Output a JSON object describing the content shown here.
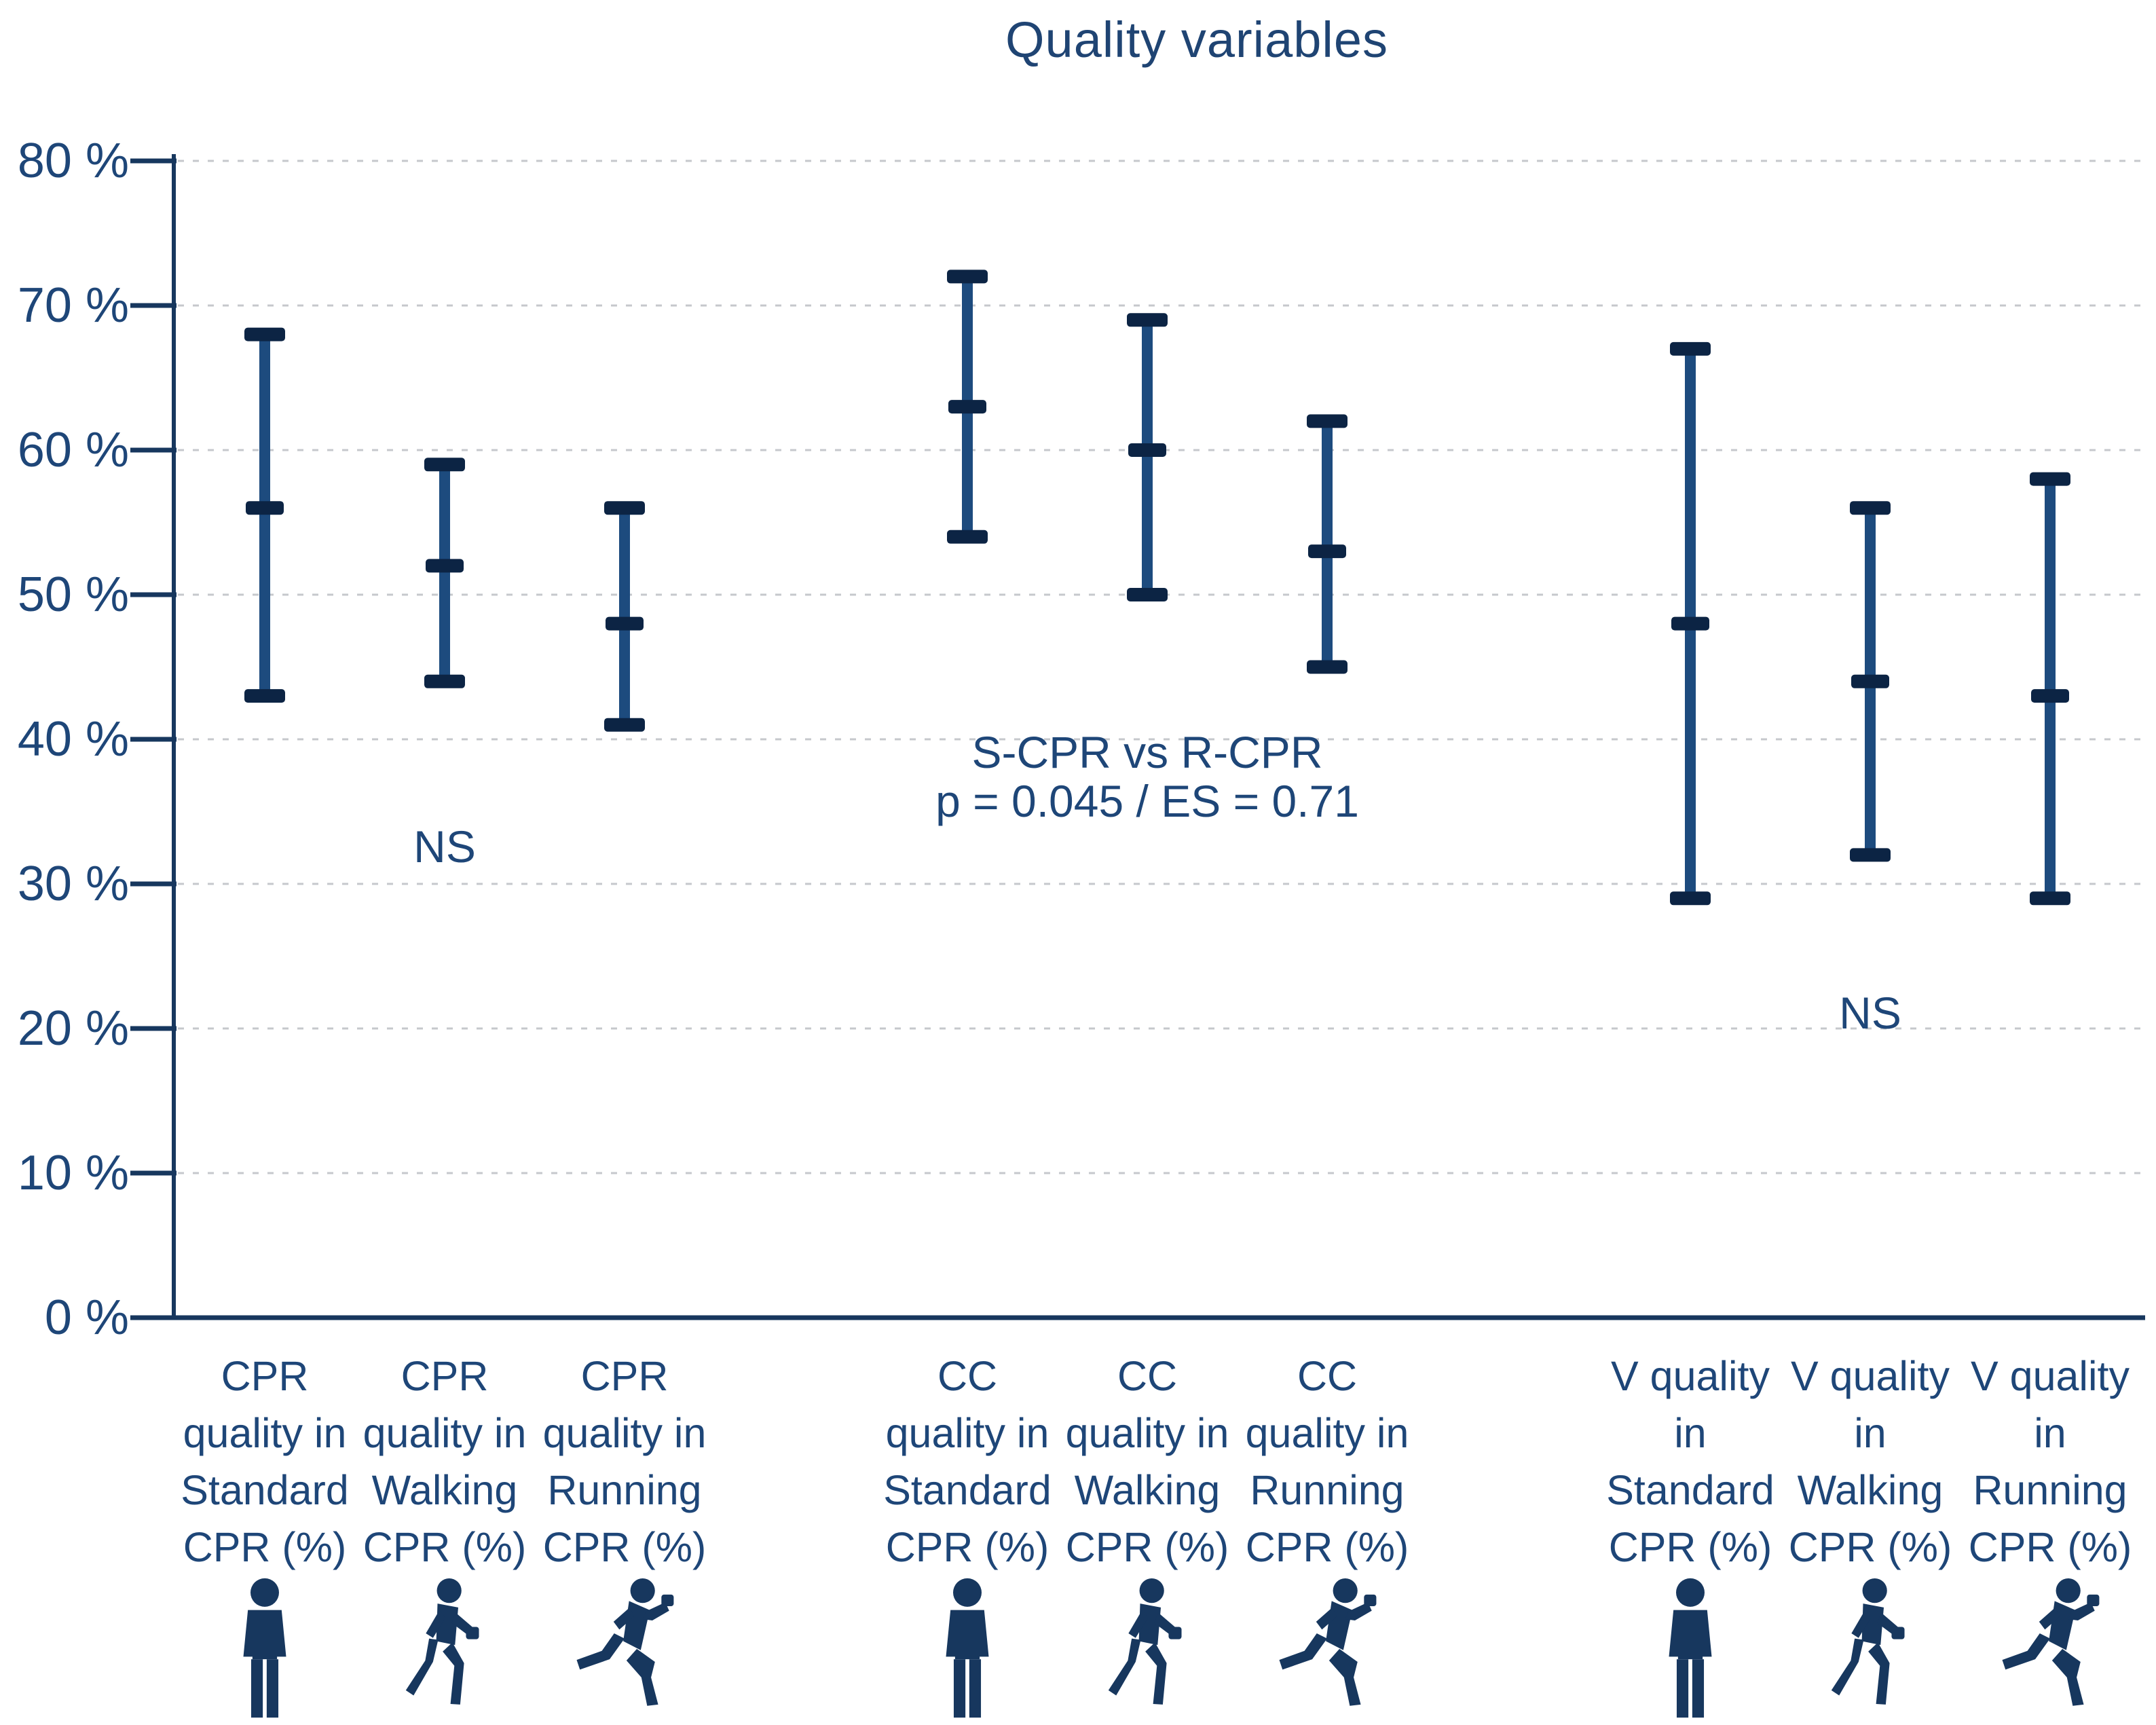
{
  "chart_data": {
    "type": "errorbar",
    "title": "Quality variables",
    "ylabel": "",
    "xlabel": "",
    "ylim": [
      0,
      80
    ],
    "grid": "dashed-horizontal",
    "legend_position": "none",
    "yticks": [
      {
        "value": 0,
        "label": "0 %"
      },
      {
        "value": 10,
        "label": "10 %"
      },
      {
        "value": 20,
        "label": "20 %"
      },
      {
        "value": 30,
        "label": "30 %"
      },
      {
        "value": 40,
        "label": "40 %"
      },
      {
        "value": 50,
        "label": "50 %"
      },
      {
        "value": 60,
        "label": "60 %"
      },
      {
        "value": 70,
        "label": "70 %"
      },
      {
        "value": 80,
        "label": "80 %"
      }
    ],
    "groups": [
      {
        "name": "CPR quality",
        "annotation": {
          "lines": [
            "NS"
          ],
          "y_pct": 32.5
        },
        "bars": [
          {
            "category": "CPR quality in Standard CPR (%)",
            "label_lines": [
              "CPR",
              "quality in",
              "Standard",
              "CPR (%)"
            ],
            "icon": "standing",
            "low": 43,
            "mid": 56,
            "high": 68
          },
          {
            "category": "CPR quality in Walking CPR (%)",
            "label_lines": [
              "CPR",
              "quality in",
              "Walking",
              "CPR (%)"
            ],
            "icon": "walking",
            "low": 44,
            "mid": 52,
            "high": 59
          },
          {
            "category": "CPR quality in Running CPR (%)",
            "label_lines": [
              "CPR",
              "quality in",
              "Running",
              "CPR (%)"
            ],
            "icon": "running",
            "low": 41,
            "mid": 48,
            "high": 56
          }
        ]
      },
      {
        "name": "CC quality",
        "annotation": {
          "lines": [
            "S-CPR vs R-CPR",
            "p = 0.045 / ES = 0.71"
          ],
          "y_pct": 39
        },
        "bars": [
          {
            "category": "CC quality in Standard CPR (%)",
            "label_lines": [
              "CC",
              "quality in",
              "Standard",
              "CPR (%)"
            ],
            "icon": "standing",
            "low": 54,
            "mid": 63,
            "high": 72
          },
          {
            "category": "CC quality in Walking CPR (%)",
            "label_lines": [
              "CC",
              "quality in",
              "Walking",
              "CPR (%)"
            ],
            "icon": "walking",
            "low": 50,
            "mid": 60,
            "high": 69
          },
          {
            "category": "CC quality in Running CPR (%)",
            "label_lines": [
              "CC",
              "quality in",
              "Running",
              "CPR (%)"
            ],
            "icon": "running",
            "low": 45,
            "mid": 53,
            "high": 62
          }
        ]
      },
      {
        "name": "V quality",
        "annotation": {
          "lines": [
            "NS"
          ],
          "y_pct": 21
        },
        "bars": [
          {
            "category": "V quality in Standard CPR (%)",
            "label_lines": [
              "V quality",
              "in",
              "Standard",
              "CPR (%)"
            ],
            "icon": "standing",
            "low": 29,
            "mid": 48,
            "high": 67
          },
          {
            "category": "V quality in Walking CPR (%)",
            "label_lines": [
              "V quality",
              "in",
              "Walking",
              "CPR (%)"
            ],
            "icon": "walking",
            "low": 32,
            "mid": 44,
            "high": 56
          },
          {
            "category": "V quality in Running CPR (%)",
            "label_lines": [
              "V quality",
              "in",
              "Running",
              "CPR (%)"
            ],
            "icon": "running",
            "low": 29,
            "mid": 43,
            "high": 58
          }
        ]
      }
    ]
  },
  "colors": {
    "title_text": "#1f4473",
    "label_text": "#1e4678",
    "axis": "#17375e",
    "gridline": "#c6c8cc",
    "bar_stem": "#1d4b7e",
    "bar_cap": "#0c2444",
    "icon": "#17375e"
  }
}
